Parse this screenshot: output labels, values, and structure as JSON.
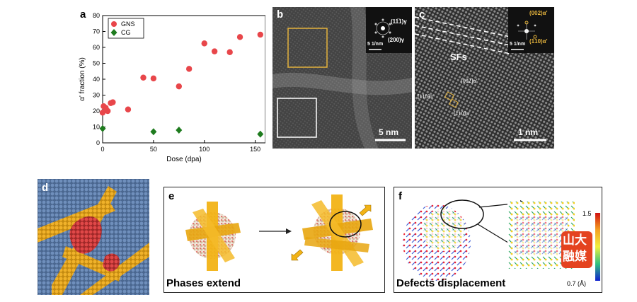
{
  "panel_a": {
    "letter": "a",
    "chart_data": {
      "type": "scatter",
      "xlabel": "Dose (dpa)",
      "ylabel": "α' fraction (%)",
      "xlim": [
        0,
        160
      ],
      "ylim": [
        0,
        80
      ],
      "xticks": [
        0,
        50,
        100,
        150
      ],
      "yticks": [
        0,
        10,
        20,
        30,
        40,
        50,
        60,
        70,
        80
      ],
      "legend_position": "top-left",
      "series": [
        {
          "name": "GNS",
          "marker": "circle",
          "color": "#e8464a",
          "x": [
            0,
            1,
            3,
            5,
            8,
            10,
            25,
            40,
            50,
            75,
            85,
            100,
            110,
            125,
            135,
            155
          ],
          "y": [
            19,
            23,
            22,
            20,
            25,
            25.5,
            21,
            41,
            40.5,
            35.5,
            46.5,
            62.5,
            57.5,
            57,
            66.5,
            68
          ]
        },
        {
          "name": "CG",
          "marker": "diamond",
          "color": "#1e7b1e",
          "x": [
            0,
            50,
            75,
            155
          ],
          "y": [
            9,
            7,
            8,
            5.5
          ]
        }
      ]
    }
  },
  "panel_b": {
    "letter": "b",
    "scale_bar": "5 nm",
    "fft_scale": "5 1/nm",
    "fft_label_1": "(11̅1)γ",
    "fft_label_2": "(200)γ"
  },
  "panel_c": {
    "letter": "c",
    "sfs_label": "SFs",
    "scale_bar": "1 nm",
    "fft_scale": "5 1/nm",
    "fft_label_1": "(002)α'",
    "fft_label_2": "(1̅10)α'",
    "dir_1": "[002]α'",
    "dir_2": "[110]α'",
    "dir_3": "[1̅10]α'"
  },
  "panel_d": {
    "letter": "d"
  },
  "panel_e": {
    "letter": "e",
    "caption": "Phases extend"
  },
  "panel_f": {
    "letter": "f",
    "caption": "Defects displacement",
    "colorbar_max": "1.5",
    "colorbar_min": "0.7 (Å)",
    "watermark": "山大融媒"
  }
}
